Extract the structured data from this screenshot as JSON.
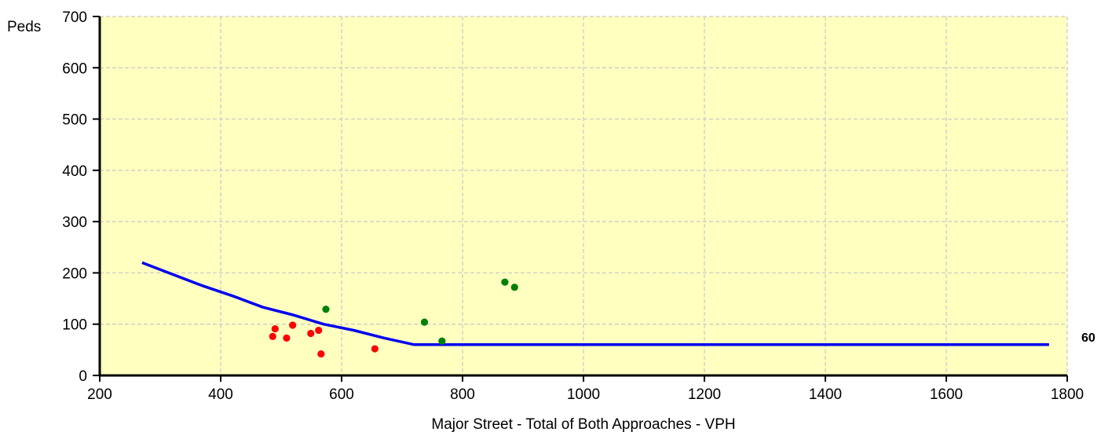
{
  "chart_data": {
    "type": "scatter",
    "title": "",
    "xlabel": "Major Street - Total of Both Approaches - VPH",
    "ylabel": "Peds",
    "xlim": [
      200,
      1800
    ],
    "ylim": [
      0,
      700
    ],
    "x_ticks": [
      "200",
      "400",
      "600",
      "800",
      "1000",
      "1200",
      "1400",
      "1600",
      "1800"
    ],
    "y_ticks": [
      "0",
      "100",
      "200",
      "300",
      "400",
      "500",
      "600",
      "700"
    ],
    "grid": true,
    "background_color": "#ffffc0",
    "threshold_line": {
      "color": "#0000ee",
      "end_label": "60",
      "points": [
        {
          "x": 270,
          "y": 220
        },
        {
          "x": 370,
          "y": 175
        },
        {
          "x": 420,
          "y": 155
        },
        {
          "x": 470,
          "y": 133
        },
        {
          "x": 520,
          "y": 118
        },
        {
          "x": 570,
          "y": 100
        },
        {
          "x": 620,
          "y": 88
        },
        {
          "x": 670,
          "y": 73
        },
        {
          "x": 720,
          "y": 60
        },
        {
          "x": 1770,
          "y": 60
        }
      ]
    },
    "series": [
      {
        "color": "#ff0000",
        "points": [
          {
            "x": 486,
            "y": 76
          },
          {
            "x": 490,
            "y": 91
          },
          {
            "x": 509,
            "y": 73
          },
          {
            "x": 519,
            "y": 98
          },
          {
            "x": 549,
            "y": 82
          },
          {
            "x": 562,
            "y": 88
          },
          {
            "x": 566,
            "y": 42
          },
          {
            "x": 655,
            "y": 52
          }
        ]
      },
      {
        "color": "#008000",
        "points": [
          {
            "x": 574,
            "y": 129
          },
          {
            "x": 737,
            "y": 104
          },
          {
            "x": 766,
            "y": 67
          },
          {
            "x": 870,
            "y": 182
          },
          {
            "x": 886,
            "y": 172
          }
        ]
      }
    ]
  }
}
